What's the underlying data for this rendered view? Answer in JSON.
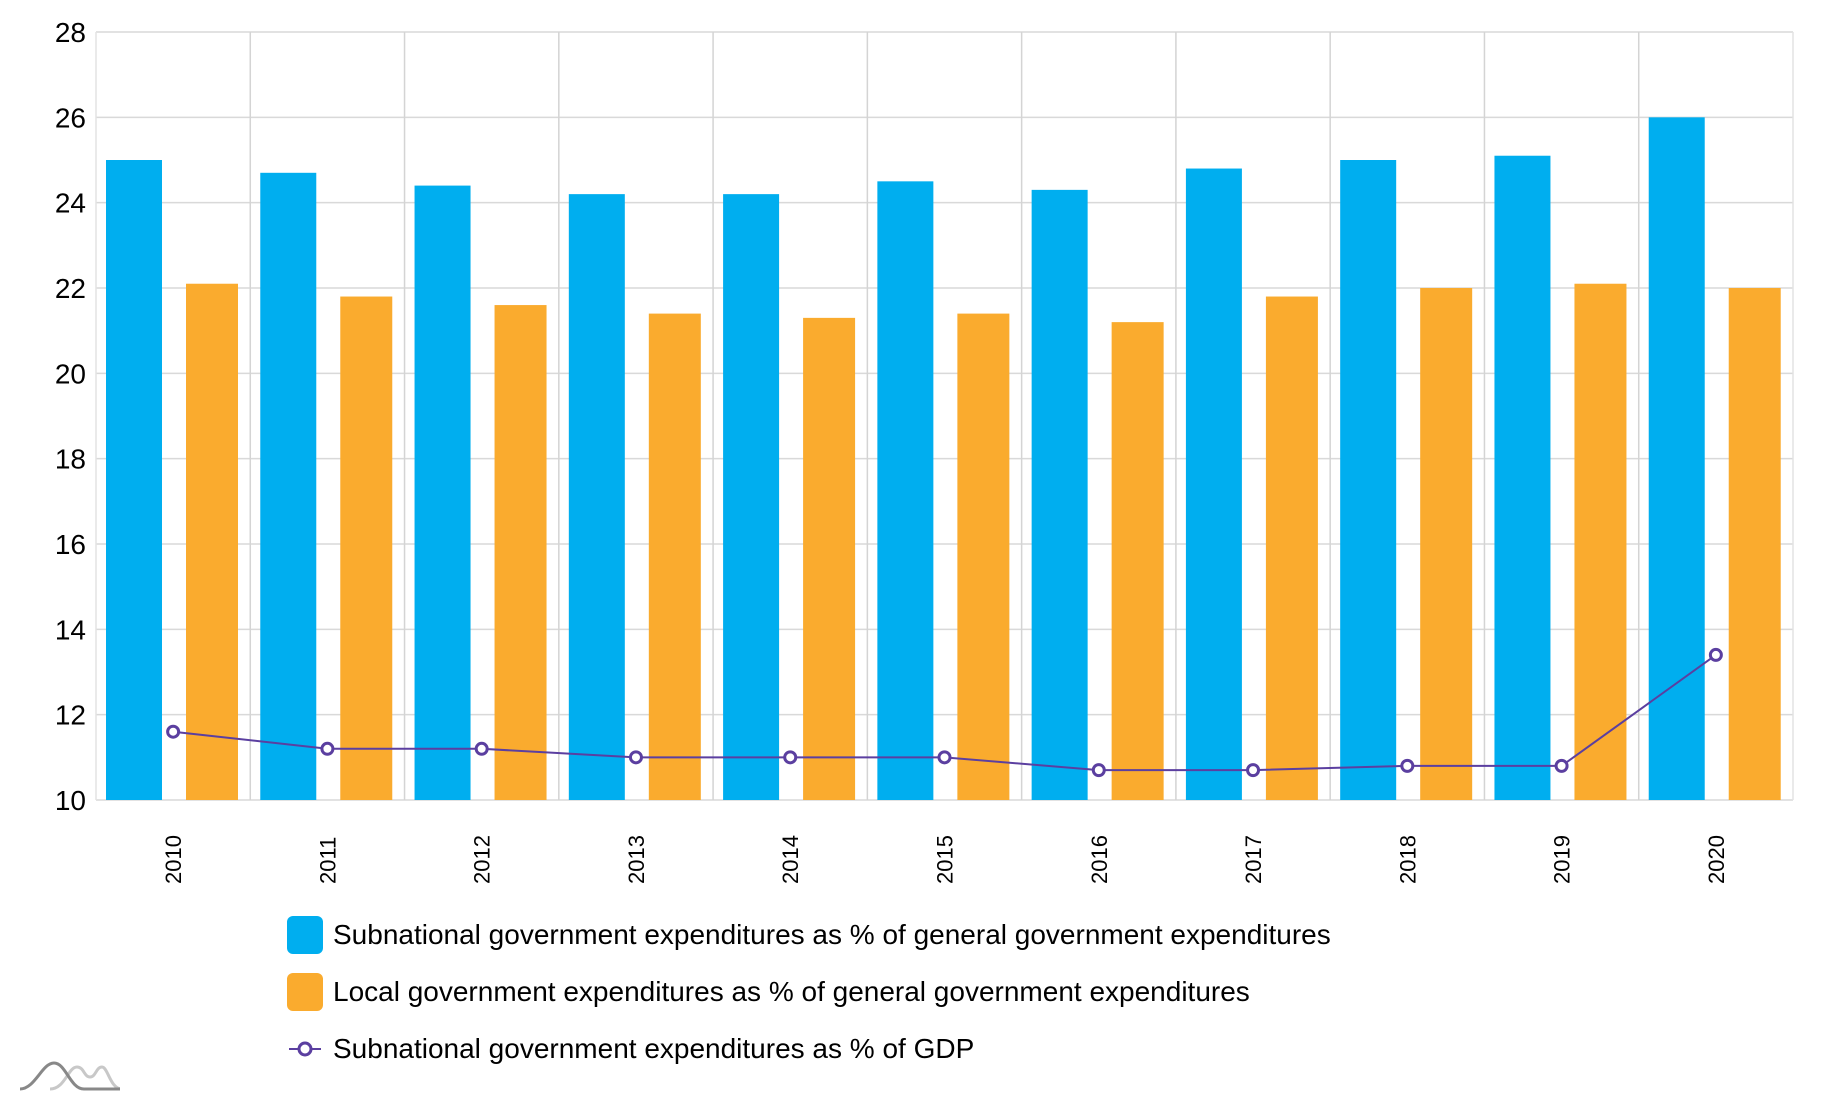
{
  "chart_data": {
    "type": "bar",
    "title": "",
    "xlabel": "",
    "ylabel": "",
    "ylim": [
      10,
      28
    ],
    "yticks": [
      "10",
      "12",
      "14",
      "16",
      "18",
      "20",
      "22",
      "24",
      "26",
      "28"
    ],
    "grid": true,
    "categories": [
      "2010",
      "2011",
      "2012",
      "2013",
      "2014",
      "2015",
      "2016",
      "2017",
      "2018",
      "2019",
      "2020"
    ],
    "series": [
      {
        "name": "Subnational government expenditures as % of general government expenditures",
        "type": "bar",
        "color": "#00aeef",
        "values": [
          25.0,
          24.7,
          24.4,
          24.2,
          24.2,
          24.5,
          24.3,
          24.8,
          25.0,
          25.1,
          26.0
        ]
      },
      {
        "name": "Local government expenditures as % of general government expenditures",
        "type": "bar",
        "color": "#faab2e",
        "values": [
          22.1,
          21.8,
          21.6,
          21.4,
          21.3,
          21.4,
          21.2,
          21.8,
          22.0,
          22.1,
          22.0
        ]
      },
      {
        "name": "Subnational government expenditures as % of GDP",
        "type": "line",
        "color": "#5b3fa0",
        "values": [
          11.6,
          11.2,
          11.2,
          11.0,
          11.0,
          11.0,
          10.7,
          10.7,
          10.8,
          10.8,
          13.4
        ]
      }
    ],
    "legend_position": "bottom-left"
  },
  "logo": {
    "icon": "amcharts-logo-icon"
  }
}
